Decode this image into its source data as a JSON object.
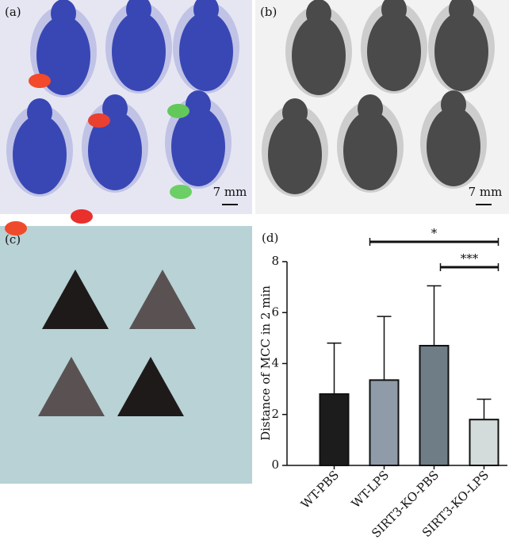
{
  "panels": [
    {
      "label": "(a)",
      "scale_bar": "7 mm"
    },
    {
      "label": "(b)",
      "scale_bar": "7 mm"
    },
    {
      "label": "(c)"
    },
    {
      "label": "(d)"
    }
  ],
  "chart_data": {
    "type": "bar",
    "ylabel": "Distance of MCC in 2 min",
    "categories": [
      "WT-PBS",
      "WT-LPS",
      "SIRT3-KO-PBS",
      "SIRT3-KO-LPS"
    ],
    "values": [
      2.8,
      3.35,
      4.7,
      1.8
    ],
    "errors": [
      2.0,
      2.5,
      2.35,
      0.8
    ],
    "colors": [
      "#1c1c1c",
      "#8f9ba8",
      "#6e7d86",
      "#d3dbdb"
    ],
    "ylim": [
      0,
      8
    ],
    "yticks": [
      0,
      2,
      4,
      6,
      8
    ],
    "significance": [
      {
        "from": 1,
        "to": 3,
        "label": "*"
      },
      {
        "from": 2,
        "to": 3,
        "label": "***"
      }
    ]
  }
}
